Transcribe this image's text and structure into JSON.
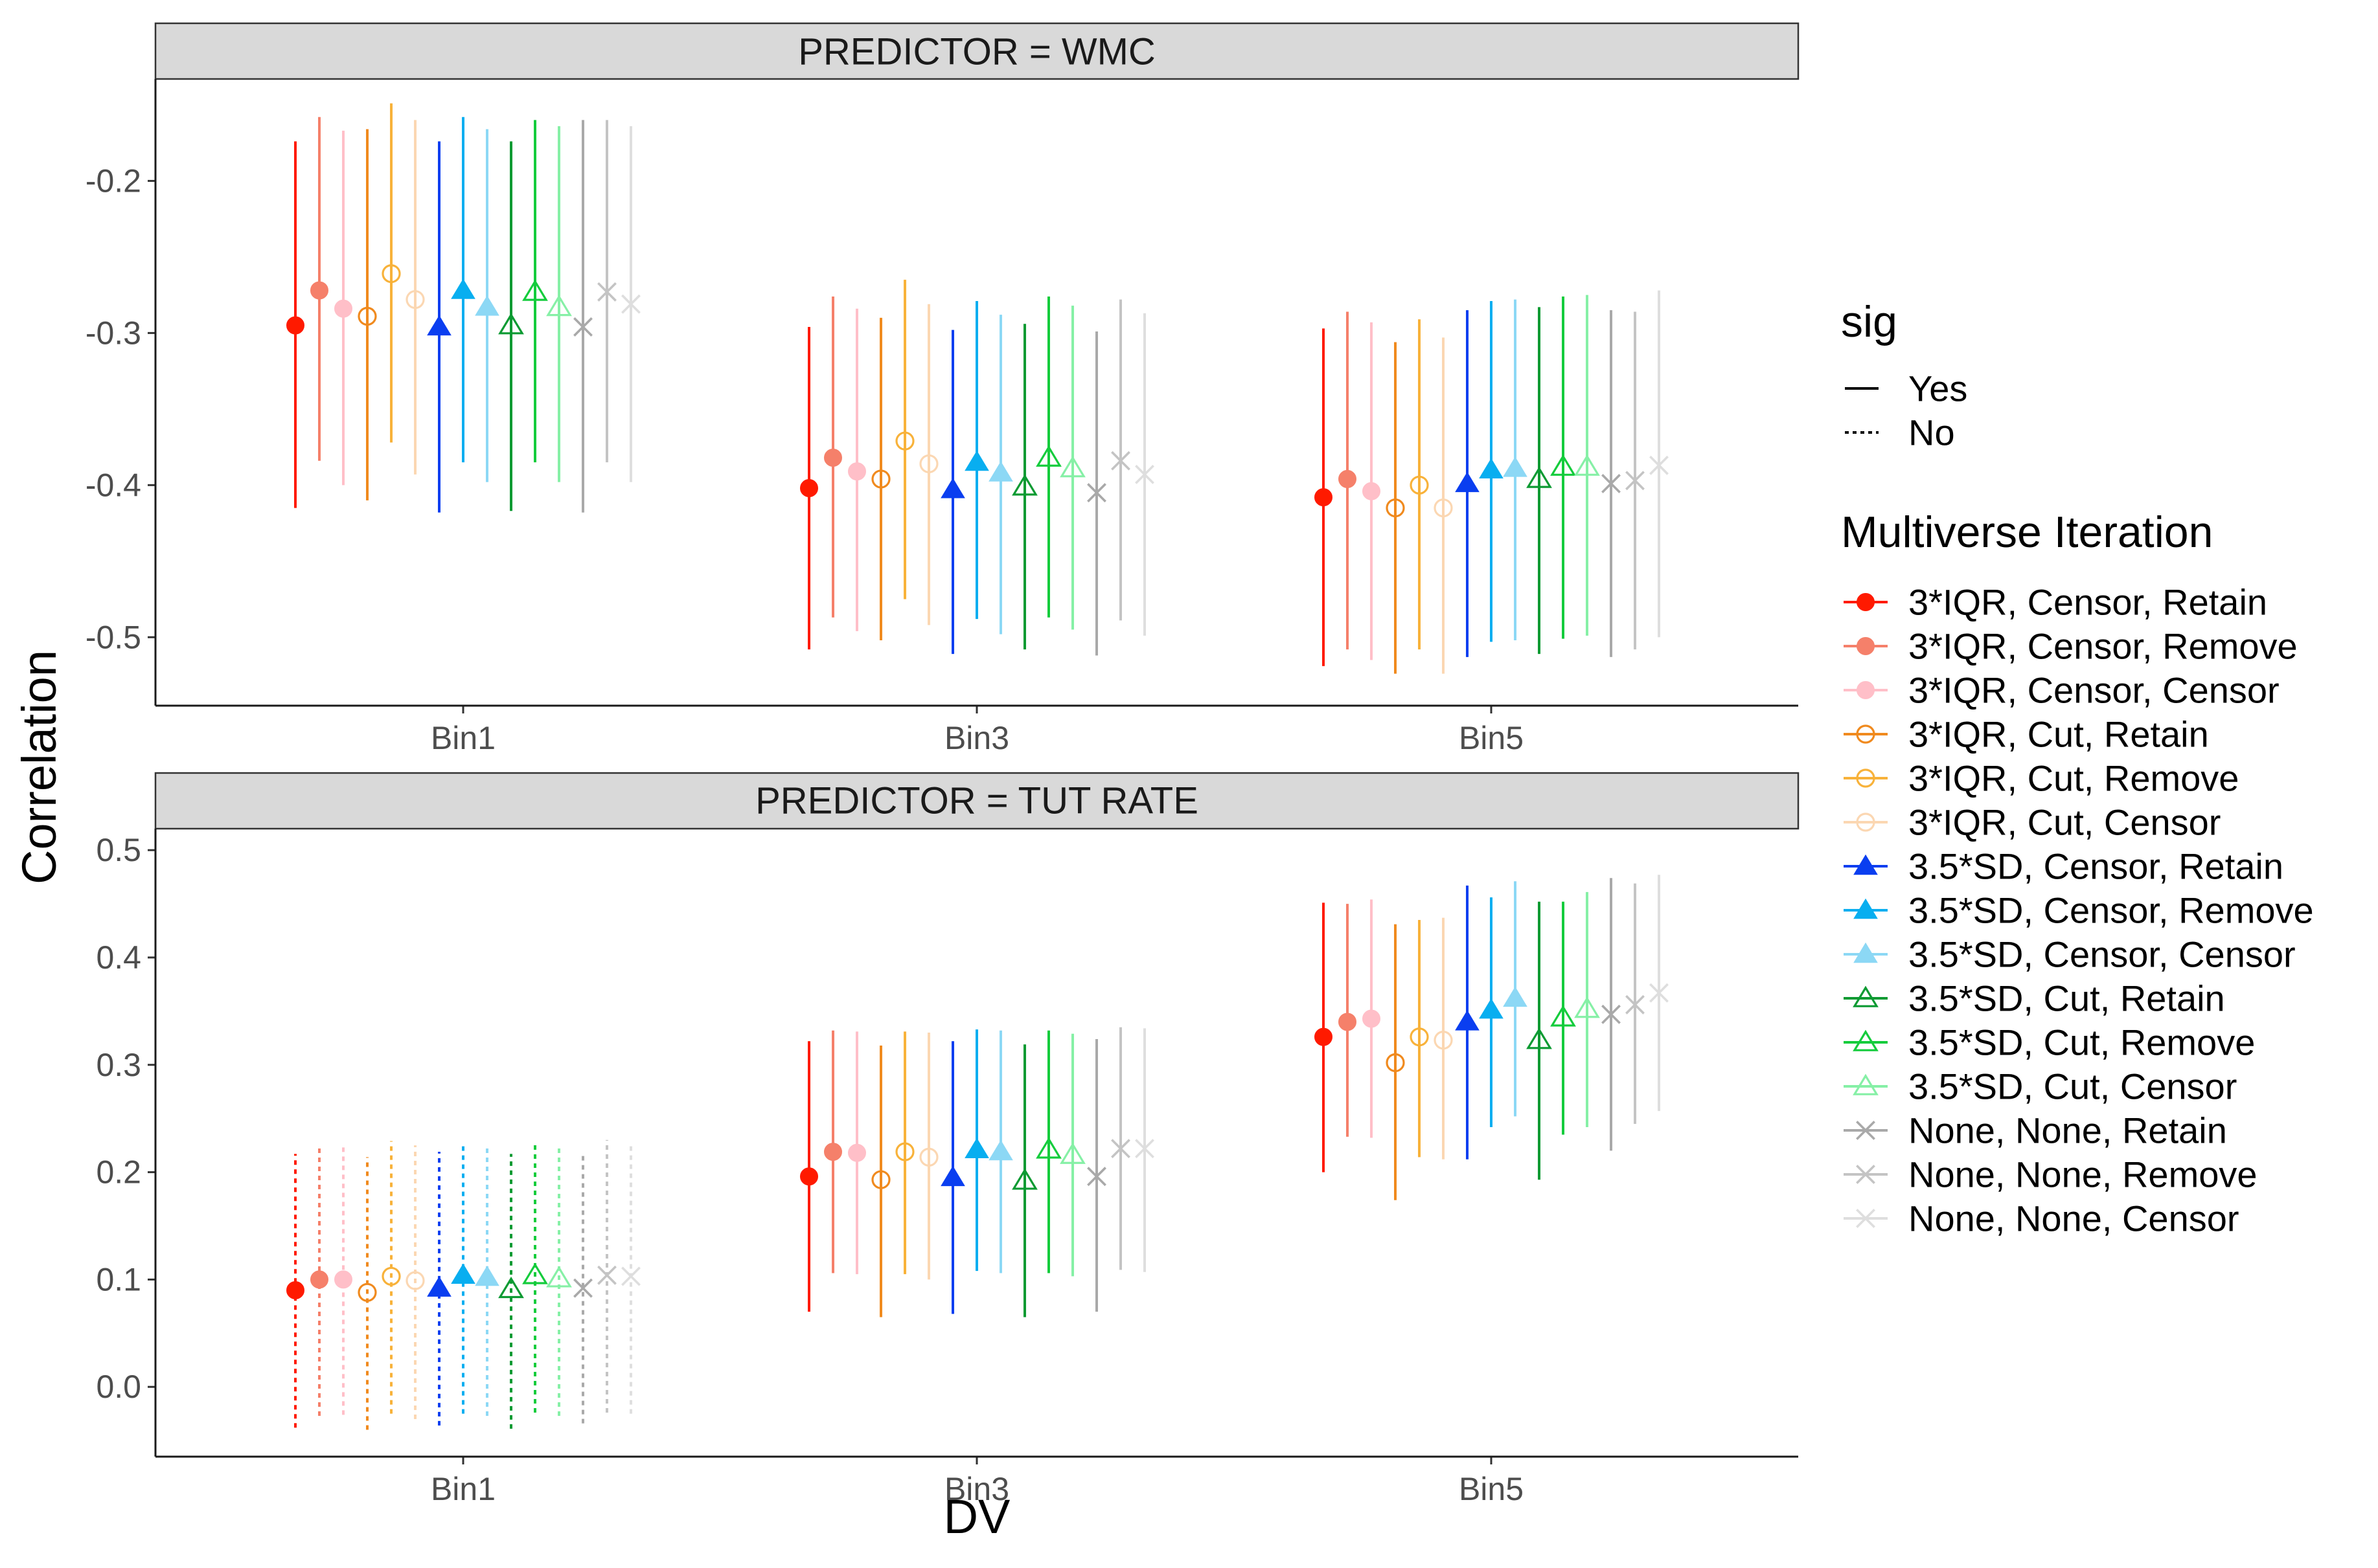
{
  "chart_data": {
    "type": "scatter",
    "subtype": "point-range (estimate with confidence interval), faceted",
    "xlabel": "DV",
    "ylabel": "Correlation",
    "categories": [
      "Bin1",
      "Bin3",
      "Bin5"
    ],
    "facets": [
      {
        "label": "PREDICTOR = WMC",
        "ylim": [
          -0.545,
          -0.133
        ],
        "yticks": [
          -0.2,
          -0.3,
          -0.4,
          -0.5
        ],
        "ytick_labels": [
          "-0.2",
          "-0.3",
          "-0.4",
          "-0.5"
        ],
        "estimates": [
          [
            -0.295,
            -0.272,
            -0.284,
            -0.289,
            -0.261,
            -0.278,
            -0.296,
            -0.272,
            -0.283,
            -0.295,
            -0.273,
            -0.283,
            -0.296,
            -0.273,
            -0.281
          ],
          [
            -0.402,
            -0.382,
            -0.391,
            -0.396,
            -0.371,
            -0.386,
            -0.403,
            -0.385,
            -0.392,
            -0.401,
            -0.382,
            -0.389,
            -0.405,
            -0.384,
            -0.393
          ],
          [
            -0.408,
            -0.396,
            -0.404,
            -0.415,
            -0.4,
            -0.415,
            -0.399,
            -0.39,
            -0.389,
            -0.396,
            -0.388,
            -0.388,
            -0.399,
            -0.397,
            -0.387
          ]
        ],
        "lower": [
          [
            -0.415,
            -0.384,
            -0.4,
            -0.41,
            -0.372,
            -0.393,
            -0.418,
            -0.385,
            -0.398,
            -0.417,
            -0.385,
            -0.398,
            -0.418,
            -0.385,
            -0.398
          ],
          [
            -0.508,
            -0.487,
            -0.496,
            -0.502,
            -0.475,
            -0.492,
            -0.511,
            -0.488,
            -0.498,
            -0.508,
            -0.487,
            -0.495,
            -0.512,
            -0.489,
            -0.499
          ],
          [
            -0.519,
            -0.508,
            -0.515,
            -0.524,
            -0.508,
            -0.524,
            -0.513,
            -0.503,
            -0.502,
            -0.511,
            -0.501,
            -0.499,
            -0.513,
            -0.508,
            -0.5
          ]
        ],
        "upper": [
          [
            -0.174,
            -0.158,
            -0.167,
            -0.166,
            -0.149,
            -0.16,
            -0.174,
            -0.158,
            -0.166,
            -0.174,
            -0.16,
            -0.164,
            -0.16,
            -0.16,
            -0.164
          ],
          [
            -0.296,
            -0.276,
            -0.284,
            -0.29,
            -0.265,
            -0.281,
            -0.298,
            -0.279,
            -0.288,
            -0.294,
            -0.276,
            -0.282,
            -0.299,
            -0.278,
            -0.287
          ],
          [
            -0.297,
            -0.286,
            -0.293,
            -0.306,
            -0.291,
            -0.303,
            -0.285,
            -0.279,
            -0.278,
            -0.283,
            -0.276,
            -0.275,
            -0.285,
            -0.286,
            -0.272
          ]
        ],
        "significant": [
          [
            true,
            true,
            true,
            true,
            true,
            true,
            true,
            true,
            true,
            true,
            true,
            true,
            true,
            true,
            true
          ],
          [
            true,
            true,
            true,
            true,
            true,
            true,
            true,
            true,
            true,
            true,
            true,
            true,
            true,
            true,
            true
          ],
          [
            true,
            true,
            true,
            true,
            true,
            true,
            true,
            true,
            true,
            true,
            true,
            true,
            true,
            true,
            true
          ]
        ]
      },
      {
        "label": "PREDICTOR = TUT RATE",
        "ylim": [
          -0.065,
          0.52
        ],
        "yticks": [
          0.5,
          0.4,
          0.3,
          0.2,
          0.1,
          0.0
        ],
        "ytick_labels": [
          "0.5",
          "0.4",
          "0.3",
          "0.2",
          "0.1",
          "0.0"
        ],
        "estimates": [
          [
            0.09,
            0.1,
            0.1,
            0.088,
            0.103,
            0.099,
            0.092,
            0.104,
            0.102,
            0.091,
            0.104,
            0.101,
            0.092,
            0.104,
            0.103
          ],
          [
            0.196,
            0.219,
            0.218,
            0.193,
            0.219,
            0.214,
            0.195,
            0.221,
            0.219,
            0.192,
            0.221,
            0.216,
            0.196,
            0.222,
            0.222
          ],
          [
            0.326,
            0.34,
            0.343,
            0.302,
            0.326,
            0.323,
            0.34,
            0.351,
            0.362,
            0.323,
            0.344,
            0.352,
            0.347,
            0.356,
            0.367
          ]
        ],
        "lower": [
          [
            -0.038,
            -0.027,
            -0.026,
            -0.04,
            -0.025,
            -0.03,
            -0.036,
            -0.025,
            -0.027,
            -0.039,
            -0.024,
            -0.027,
            -0.034,
            -0.024,
            -0.025
          ],
          [
            0.07,
            0.106,
            0.105,
            0.065,
            0.105,
            0.1,
            0.068,
            0.108,
            0.106,
            0.065,
            0.106,
            0.103,
            0.07,
            0.109,
            0.107
          ],
          [
            0.2,
            0.233,
            0.232,
            0.174,
            0.214,
            0.212,
            0.212,
            0.242,
            0.252,
            0.193,
            0.235,
            0.242,
            0.22,
            0.245,
            0.257
          ]
        ],
        "upper": [
          [
            0.217,
            0.225,
            0.224,
            0.214,
            0.229,
            0.225,
            0.219,
            0.227,
            0.224,
            0.217,
            0.227,
            0.224,
            0.219,
            0.23,
            0.228
          ],
          [
            0.322,
            0.332,
            0.331,
            0.318,
            0.331,
            0.33,
            0.322,
            0.333,
            0.332,
            0.319,
            0.332,
            0.329,
            0.324,
            0.335,
            0.334
          ],
          [
            0.451,
            0.45,
            0.454,
            0.431,
            0.435,
            0.437,
            0.467,
            0.456,
            0.471,
            0.452,
            0.452,
            0.461,
            0.474,
            0.469,
            0.477
          ]
        ],
        "significant": [
          [
            false,
            false,
            false,
            false,
            false,
            false,
            false,
            false,
            false,
            false,
            false,
            false,
            false,
            false,
            false
          ],
          [
            true,
            true,
            true,
            true,
            true,
            true,
            true,
            true,
            true,
            true,
            true,
            true,
            true,
            true,
            true
          ],
          [
            true,
            true,
            true,
            true,
            true,
            true,
            true,
            true,
            true,
            true,
            true,
            true,
            true,
            true,
            true
          ]
        ]
      }
    ],
    "legend": {
      "placement": "right",
      "sig_title": "sig",
      "sig_entries": [
        {
          "label": "Yes",
          "linetype": "solid"
        },
        {
          "label": "No",
          "linetype": "dotted"
        }
      ],
      "iteration_title": "Multiverse Iteration",
      "iterations": [
        {
          "label": "3*IQR, Censor, Retain",
          "color": "#ff1a00",
          "shape": "circle-filled"
        },
        {
          "label": "3*IQR, Censor, Remove",
          "color": "#f5806a",
          "shape": "circle-filled"
        },
        {
          "label": "3*IQR, Censor, Censor",
          "color": "#ffbfc8",
          "shape": "circle-filled"
        },
        {
          "label": "3*IQR, Cut, Retain",
          "color": "#f08a1e",
          "shape": "circle-open"
        },
        {
          "label": "3*IQR, Cut, Remove",
          "color": "#f8b23a",
          "shape": "circle-open"
        },
        {
          "label": "3*IQR, Cut, Censor",
          "color": "#fbd7b2",
          "shape": "circle-open"
        },
        {
          "label": "3.5*SD, Censor, Retain",
          "color": "#0a3ef0",
          "shape": "triangle-filled"
        },
        {
          "label": "3.5*SD, Censor, Remove",
          "color": "#08aef0",
          "shape": "triangle-filled"
        },
        {
          "label": "3.5*SD, Censor, Censor",
          "color": "#8cd8f5",
          "shape": "triangle-filled"
        },
        {
          "label": "3.5*SD, Cut, Retain",
          "color": "#0c9a32",
          "shape": "triangle-open"
        },
        {
          "label": "3.5*SD, Cut, Remove",
          "color": "#14cc3c",
          "shape": "triangle-open"
        },
        {
          "label": "3.5*SD, Cut, Censor",
          "color": "#86f0a6",
          "shape": "triangle-open"
        },
        {
          "label": "None, None, Retain",
          "color": "#a9a9a9",
          "shape": "x"
        },
        {
          "label": "None, None, Remove",
          "color": "#c4c4c4",
          "shape": "x"
        },
        {
          "label": "None, None, Censor",
          "color": "#dedede",
          "shape": "x"
        }
      ]
    }
  }
}
